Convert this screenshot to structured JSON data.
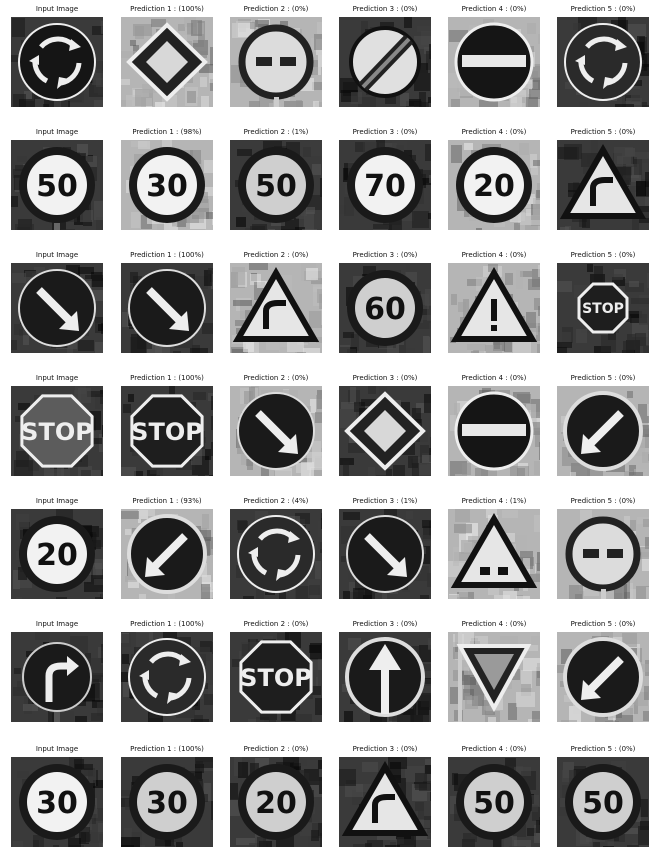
{
  "rows": [
    {
      "titles": [
        "Input Image",
        "Prediction 1 : (100%)",
        "Prediction 2 : (0%)",
        "Prediction 3 : (0%)",
        "Prediction 4 : (0%)",
        "Prediction 5 : (0%)"
      ],
      "signs": [
        "roundabout",
        "priority",
        "no-trucks-overtaking",
        "end-restriction",
        "no-entry",
        "roundabout-dim"
      ]
    },
    {
      "titles": [
        "Input Image",
        "Prediction 1 : (98%)",
        "Prediction 2 : (1%)",
        "Prediction 3 : (0%)",
        "Prediction 4 : (0%)",
        "Prediction 5 : (0%)"
      ],
      "signs": [
        "speed-50",
        "speed-30",
        "speed-50-dark",
        "speed-70",
        "speed-20",
        "warning-dim"
      ]
    },
    {
      "titles": [
        "Input Image",
        "Prediction 1 : (100%)",
        "Prediction 2 : (0%)",
        "Prediction 3 : (0%)",
        "Prediction 4 : (0%)",
        "Prediction 5 : (0%)"
      ],
      "signs": [
        "keep-right",
        "keep-right-dark",
        "curve-warning",
        "speed-60-blur",
        "general-caution",
        "stop-small"
      ]
    },
    {
      "titles": [
        "Input Image",
        "Prediction 1 : (100%)",
        "Prediction 2 : (0%)",
        "Prediction 3 : (0%)",
        "Prediction 4 : (0%)",
        "Prediction 5 : (0%)"
      ],
      "signs": [
        "stop",
        "stop-dark",
        "keep-right",
        "priority",
        "no-entry",
        "keep-left"
      ]
    },
    {
      "titles": [
        "Input Image",
        "Prediction 1 : (93%)",
        "Prediction 2 : (4%)",
        "Prediction 3 : (1%)",
        "Prediction 4 : (1%)",
        "Prediction 5 : (0%)"
      ],
      "signs": [
        "speed-20",
        "keep-left",
        "roundabout-dim",
        "keep-right-dark",
        "slippery-warning",
        "no-trucks-overtaking"
      ]
    },
    {
      "titles": [
        "Input Image",
        "Prediction 1 : (100%)",
        "Prediction 2 : (0%)",
        "Prediction 3 : (0%)",
        "Prediction 4 : (0%)",
        "Prediction 5 : (0%)"
      ],
      "signs": [
        "turn-right",
        "roundabout-dim",
        "stop-dark",
        "ahead-only",
        "yield",
        "keep-left"
      ]
    },
    {
      "titles": [
        "Input Image",
        "Prediction 1 : (100%)",
        "Prediction 2 : (0%)",
        "Prediction 3 : (0%)",
        "Prediction 4 : (0%)",
        "Prediction 5 : (0%)"
      ],
      "signs": [
        "speed-30",
        "speed-30-dark",
        "speed-20-dark",
        "curve-warning",
        "speed-50-dark",
        "speed-50-blur"
      ]
    }
  ],
  "sign_text": {
    "speed-50": "50",
    "speed-30": "30",
    "speed-50-dark": "50",
    "speed-70": "70",
    "speed-20": "20",
    "speed-60-blur": "60",
    "stop": "STOP",
    "stop-dark": "STOP",
    "stop-small": "STOP",
    "speed-30-dark": "30",
    "speed-20-dark": "20",
    "speed-50-blur": "50"
  }
}
